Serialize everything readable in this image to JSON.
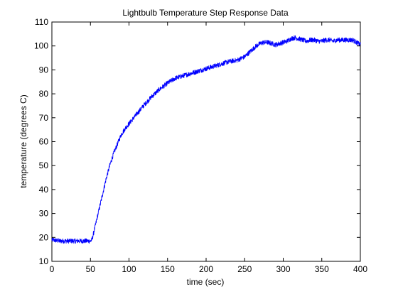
{
  "chart_data": {
    "type": "line",
    "title": "Lightbulb Temperature Step Response Data",
    "xlabel": "time (sec)",
    "ylabel": "temperature (degrees C)",
    "xlim": [
      0,
      400
    ],
    "ylim": [
      10,
      110
    ],
    "xticks": [
      0,
      50,
      100,
      150,
      200,
      250,
      300,
      350,
      400
    ],
    "yticks": [
      10,
      20,
      30,
      40,
      50,
      60,
      70,
      80,
      90,
      100,
      110
    ],
    "grid": false,
    "noise_amplitude": 1.0,
    "series": [
      {
        "color": "#0000ff",
        "x": [
          0,
          10,
          20,
          30,
          40,
          50,
          52,
          55,
          60,
          65,
          70,
          75,
          80,
          85,
          90,
          95,
          100,
          110,
          120,
          130,
          140,
          150,
          160,
          170,
          180,
          190,
          200,
          210,
          220,
          230,
          240,
          250,
          255,
          260,
          265,
          270,
          275,
          280,
          285,
          290,
          295,
          300,
          305,
          310,
          315,
          320,
          325,
          330,
          335,
          340,
          345,
          350,
          355,
          360,
          365,
          370,
          375,
          380,
          385,
          390,
          395,
          400
        ],
        "y": [
          19,
          18.5,
          18.5,
          18.5,
          18.5,
          18.5,
          19,
          23,
          30,
          37,
          44,
          50,
          55,
          59,
          63,
          65.5,
          67.5,
          71.5,
          75.5,
          79,
          82,
          84.5,
          86.5,
          87.5,
          88.5,
          89.5,
          90.5,
          91.5,
          92.5,
          93.5,
          94,
          95.5,
          97,
          98.5,
          100,
          101,
          101.5,
          101.5,
          101,
          100.5,
          101,
          101.5,
          102,
          103,
          103.5,
          103,
          102.5,
          102,
          102.5,
          102.5,
          102,
          102,
          102.5,
          102.5,
          102,
          102.5,
          102.5,
          102.5,
          102.5,
          102.5,
          101.5,
          100.5
        ]
      }
    ]
  }
}
